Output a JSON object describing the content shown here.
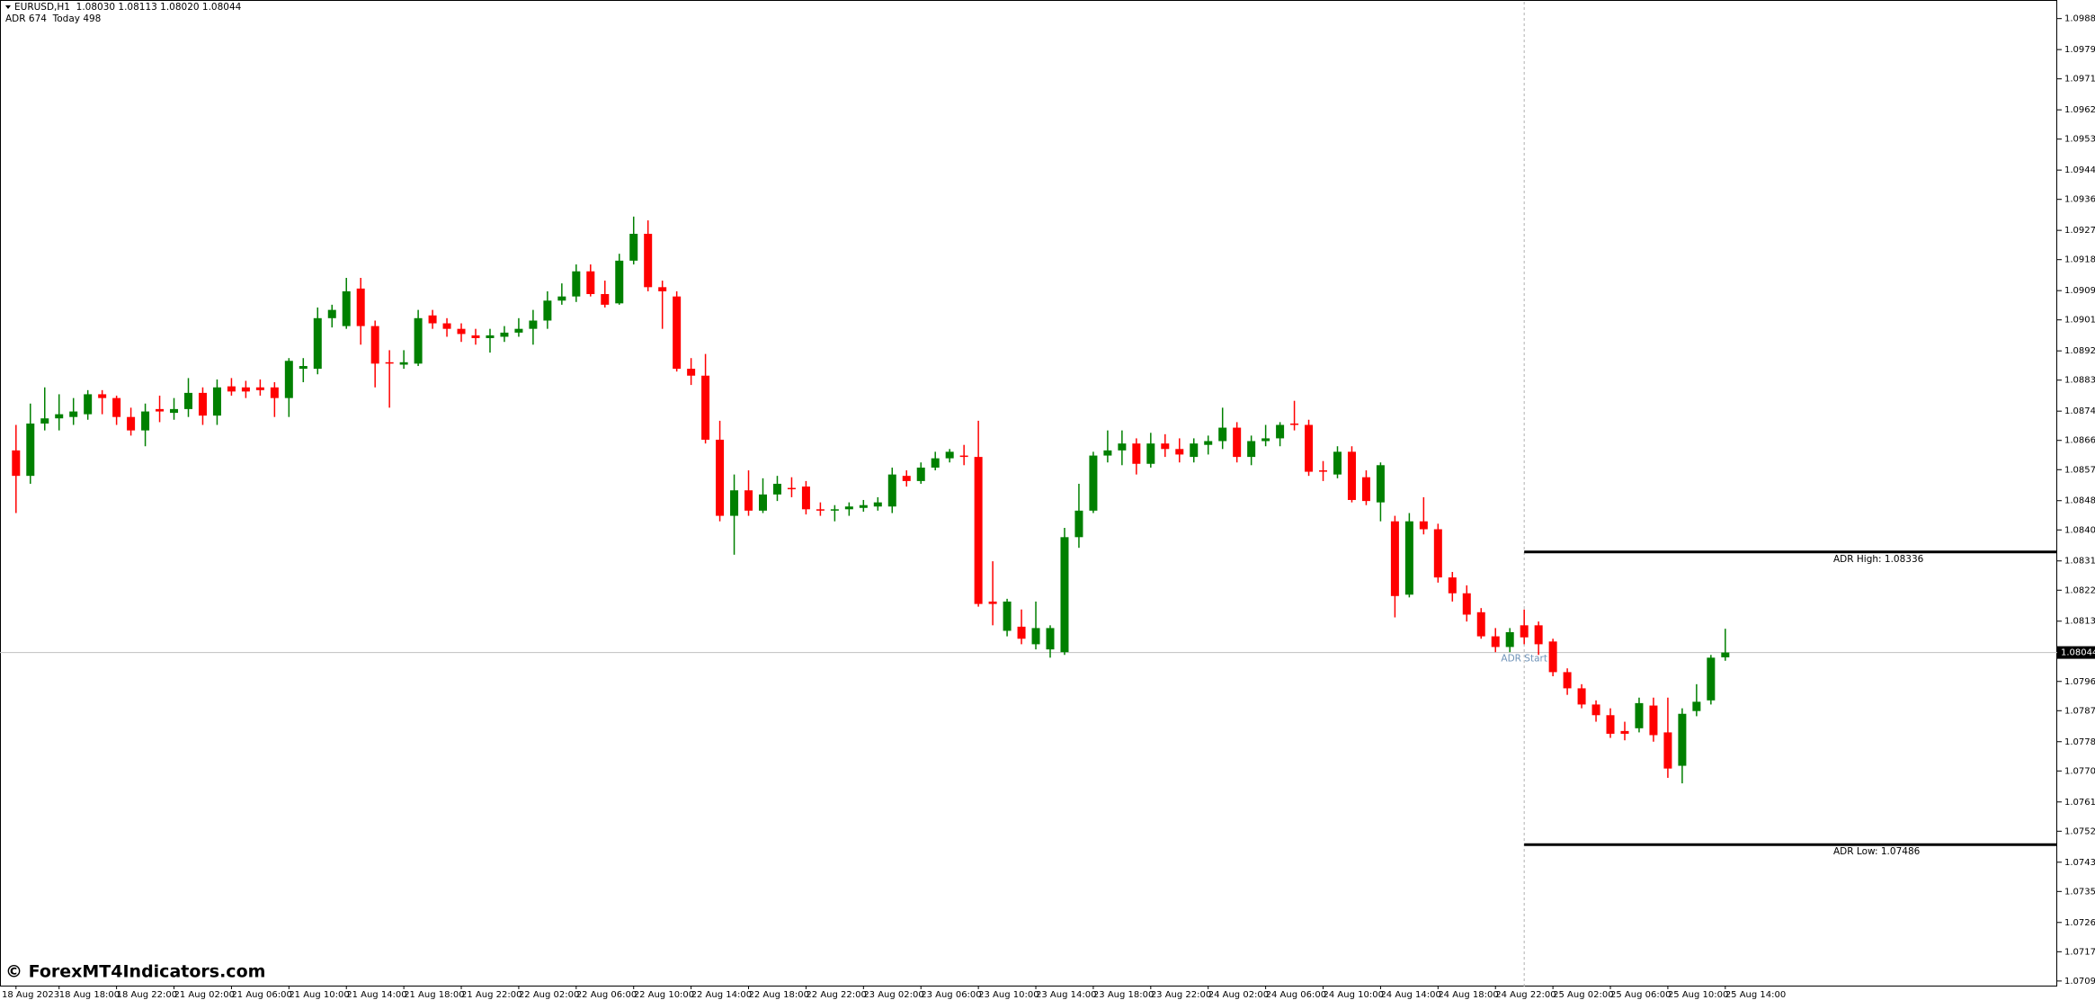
{
  "chart_data": {
    "type": "candlestick",
    "title": "EURUSD,H1  1.08030 1.08113 1.08020 1.08044",
    "subtitle": "ADR 674  Today 498",
    "watermark": "© ForexMT4Indicators.com",
    "up_color": "#008000",
    "down_color": "#ff0000",
    "grid": false,
    "ylim": [
      1.07074,
      1.09939
    ],
    "yticks": [
      1.09885,
      1.09795,
      {
        "value": 1.0971,
        "label": "1.09710"
      },
      {
        "value": 1.0962,
        "label": "1.09620"
      },
      1.09535,
      1.09445,
      {
        "value": 1.0936,
        "label": "1.09360"
      },
      {
        "value": 1.0927,
        "label": "1.09270"
      },
      1.09185,
      1.09095,
      {
        "value": 1.0901,
        "label": "1.09010"
      },
      {
        "value": 1.0892,
        "label": "1.08920"
      },
      1.08835,
      1.08745,
      {
        "value": 1.0866,
        "label": "1.08660"
      },
      1.08575,
      1.08485,
      {
        "value": 1.084,
        "label": "1.08400"
      },
      {
        "value": 1.0831,
        "label": "1.08310"
      },
      1.08225,
      1.08135,
      {
        "value": 1.0796,
        "label": "1.07960"
      },
      1.07875,
      1.07785,
      {
        "value": 1.077,
        "label": "1.07700"
      },
      {
        "value": 1.0761,
        "label": "1.07610"
      },
      1.07525,
      1.07435,
      {
        "value": 1.0735,
        "label": "1.07350"
      },
      {
        "value": 1.0726,
        "label": "1.07260"
      },
      1.07175,
      {
        "value": 1.0709,
        "label": "1.07090"
      }
    ],
    "categories": [
      "18 Aug 2023",
      null,
      null,
      "18 Aug 18:00",
      null,
      null,
      null,
      "18 Aug 22:00",
      null,
      null,
      null,
      "21 Aug 02:00",
      null,
      null,
      null,
      "21 Aug 06:00",
      null,
      null,
      null,
      "21 Aug 10:00",
      null,
      null,
      null,
      "21 Aug 14:00",
      null,
      null,
      null,
      "21 Aug 18:00",
      null,
      null,
      null,
      "21 Aug 22:00",
      null,
      null,
      null,
      "22 Aug 02:00",
      null,
      null,
      null,
      "22 Aug 06:00",
      null,
      null,
      null,
      "22 Aug 10:00",
      null,
      null,
      null,
      "22 Aug 14:00",
      null,
      null,
      null,
      "22 Aug 18:00",
      null,
      null,
      null,
      "22 Aug 22:00",
      null,
      null,
      null,
      "23 Aug 02:00",
      null,
      null,
      null,
      "23 Aug 06:00",
      null,
      null,
      null,
      "23 Aug 10:00",
      null,
      null,
      null,
      "23 Aug 14:00",
      null,
      null,
      null,
      "23 Aug 18:00",
      null,
      null,
      null,
      "23 Aug 22:00",
      null,
      null,
      null,
      "24 Aug 02:00",
      null,
      null,
      null,
      "24 Aug 06:00",
      null,
      null,
      null,
      "24 Aug 10:00",
      null,
      null,
      null,
      "24 Aug 14:00",
      null,
      null,
      null,
      "24 Aug 18:00",
      null,
      null,
      null,
      "24 Aug 22:00",
      null,
      null,
      null,
      "25 Aug 02:00",
      null,
      null,
      null,
      "25 Aug 06:00",
      null,
      null,
      null,
      "25 Aug 10:00",
      null,
      null,
      null,
      "25 Aug 14:00"
    ],
    "open": [
      1.08631,
      1.08557,
      1.08709,
      1.08724,
      1.08728,
      1.08736,
      1.08794,
      1.08783,
      1.08728,
      1.08689,
      1.08751,
      1.0874,
      1.08751,
      1.08798,
      1.08732,
      1.08817,
      1.08814,
      1.08814,
      1.08814,
      1.08783,
      1.08868,
      1.08868,
      1.09015,
      1.08992,
      1.09101,
      1.08992,
      1.08887,
      1.0888,
      1.08883,
      1.09023,
      1.09,
      1.08984,
      1.08965,
      1.08957,
      1.08961,
      1.08973,
      1.08984,
      1.09008,
      1.09066,
      1.09078,
      1.09151,
      1.09085,
      1.09058,
      1.09182,
      1.0926,
      1.09105,
      1.09078,
      1.08868,
      1.08848,
      1.08662,
      1.08441,
      1.08515,
      1.08456,
      1.08503,
      1.08522,
      1.08526,
      1.0846,
      1.08456,
      1.0846,
      1.08464,
      1.08468,
      1.08468,
      1.08557,
      1.08542,
      1.08581,
      1.08608,
      1.08616,
      1.08612,
      1.08192,
      1.08107,
      1.08119,
      1.08068,
      1.08053,
      1.08045,
      1.08379,
      1.08456,
      1.08616,
      1.08631,
      1.08651,
      1.08592,
      1.08651,
      1.08635,
      1.08612,
      1.08647,
      1.08658,
      1.08697,
      1.08612,
      1.08658,
      1.08666,
      1.08709,
      1.08705,
      1.08573,
      1.08561,
      1.08627,
      1.08553,
      1.0848,
      1.08425,
      1.08212,
      1.08425,
      1.08402,
      1.08262,
      1.08216,
      1.08161,
      1.08091,
      1.0806,
      1.08123,
      1.08123,
      1.08076,
      1.07987,
      1.0794,
      1.07893,
      1.07862,
      1.07816,
      1.07824,
      1.0789,
      1.07812,
      1.07715,
      1.07874,
      1.07905,
      1.0803
    ],
    "high": [
      1.08705,
      1.08767,
      1.08814,
      1.08794,
      1.08783,
      1.08806,
      1.08806,
      1.0879,
      1.08755,
      1.08767,
      1.0879,
      1.08783,
      1.08841,
      1.08814,
      1.08837,
      1.08841,
      1.08833,
      1.08837,
      1.08829,
      1.08899,
      1.08899,
      1.09046,
      1.09054,
      1.09132,
      1.09132,
      1.09008,
      1.08922,
      1.08922,
      1.09039,
      1.09039,
      1.09015,
      1.09,
      1.08984,
      1.08984,
      1.08992,
      1.09015,
      1.09039,
      1.09093,
      1.09116,
      1.09171,
      1.09171,
      1.09124,
      1.09202,
      1.0931,
      1.09299,
      1.09124,
      1.09093,
      1.08899,
      1.08911,
      1.08717,
      1.08561,
      1.08573,
      1.0855,
      1.08557,
      1.08553,
      1.08542,
      1.0848,
      1.08472,
      1.0848,
      1.08487,
      1.08495,
      1.08581,
      1.08573,
      1.08596,
      1.08627,
      1.08635,
      1.08647,
      1.08717,
      1.08309,
      1.082,
      1.08169,
      1.08192,
      1.08123,
      1.08406,
      1.08534,
      1.08627,
      1.08689,
      1.08689,
      1.08666,
      1.08682,
      1.08678,
      1.08666,
      1.08666,
      1.08674,
      1.08755,
      1.08713,
      1.08674,
      1.08705,
      1.08713,
      1.08775,
      1.0872,
      1.086,
      1.08643,
      1.08643,
      1.08573,
      1.08596,
      1.08441,
      1.08449,
      1.08495,
      1.08418,
      1.08278,
      1.08239,
      1.08173,
      1.08115,
      1.08115,
      1.08169,
      1.08134,
      1.08084,
      1.07998,
      1.07952,
      1.07905,
      1.07882,
      1.07843,
      1.07913,
      1.07913,
      1.07913,
      1.07882,
      1.07952,
      1.08037,
      1.08113
    ],
    "low": [
      1.08449,
      1.08534,
      1.08689,
      1.08689,
      1.08705,
      1.0872,
      1.08736,
      1.08705,
      1.08674,
      1.08643,
      1.08713,
      1.0872,
      1.08728,
      1.08705,
      1.08705,
      1.0879,
      1.08783,
      1.0879,
      1.08728,
      1.08728,
      1.08829,
      1.08852,
      1.08988,
      1.08984,
      1.08938,
      1.08814,
      1.08755,
      1.08868,
      1.08876,
      1.08984,
      1.08961,
      1.08946,
      1.08938,
      1.08915,
      1.08946,
      1.08961,
      1.08938,
      1.08984,
      1.09054,
      1.09062,
      1.09078,
      1.09046,
      1.09054,
      1.09171,
      1.09093,
      1.08984,
      1.0886,
      1.08821,
      1.08651,
      1.08425,
      1.08328,
      1.08441,
      1.08449,
      1.08484,
      1.08495,
      1.08445,
      1.08441,
      1.08425,
      1.08441,
      1.08453,
      1.08456,
      1.08449,
      1.08526,
      1.08534,
      1.08573,
      1.08596,
      1.08588,
      1.08177,
      1.08123,
      1.08091,
      1.08068,
      1.08053,
      1.08029,
      1.08037,
      1.08348,
      1.08449,
      1.08596,
      1.08588,
      1.08561,
      1.08581,
      1.08612,
      1.08596,
      1.08596,
      1.08619,
      1.08635,
      1.08596,
      1.08588,
      1.08643,
      1.08643,
      1.08689,
      1.08557,
      1.08542,
      1.0855,
      1.0848,
      1.08472,
      1.08425,
      1.08146,
      1.08204,
      1.08387,
      1.08247,
      1.08192,
      1.08134,
      1.08084,
      1.08045,
      1.08045,
      1.08068,
      1.08037,
      1.07975,
      1.07921,
      1.07882,
      1.07843,
      1.07796,
      1.07789,
      1.07812,
      1.07785,
      1.0768,
      1.07664,
      1.07859,
      1.07893,
      1.0802
    ],
    "close": [
      1.08557,
      1.08709,
      1.08724,
      1.08736,
      1.08744,
      1.08794,
      1.08783,
      1.08728,
      1.08689,
      1.08744,
      1.08744,
      1.08751,
      1.08798,
      1.08732,
      1.08814,
      1.08802,
      1.08802,
      1.08806,
      1.08783,
      1.08891,
      1.08876,
      1.09015,
      1.09039,
      1.09093,
      1.08992,
      1.08883,
      1.08883,
      1.08887,
      1.09015,
      1.09,
      1.08984,
      1.08969,
      1.08957,
      1.08965,
      1.08973,
      1.08984,
      1.09008,
      1.09066,
      1.09078,
      1.09151,
      1.09085,
      1.09054,
      1.09182,
      1.0926,
      1.09105,
      1.09093,
      1.08868,
      1.08848,
      1.08662,
      1.08441,
      1.08515,
      1.08456,
      1.08503,
      1.08534,
      1.08519,
      1.0846,
      1.08456,
      1.0846,
      1.08468,
      1.08472,
      1.0848,
      1.08561,
      1.08542,
      1.08581,
      1.08608,
      1.08627,
      1.08612,
      1.08185,
      1.08185,
      1.08192,
      1.08084,
      1.08115,
      1.08115,
      1.08379,
      1.08456,
      1.08616,
      1.08631,
      1.08651,
      1.08592,
      1.08651,
      1.08635,
      1.08619,
      1.08651,
      1.08658,
      1.08697,
      1.08612,
      1.08658,
      1.08666,
      1.08705,
      1.08705,
      1.08569,
      1.08569,
      1.08627,
      1.08487,
      1.08484,
      1.08588,
      1.08208,
      1.08425,
      1.08402,
      1.08262,
      1.08216,
      1.08154,
      1.08091,
      1.0806,
      1.08103,
      1.08088,
      1.08068,
      1.07987,
      1.0794,
      1.07893,
      1.07862,
      1.07808,
      1.07808,
      1.07897,
      1.07804,
      1.07707,
      1.07866,
      1.07901,
      1.08029,
      1.08044
    ],
    "levels": [
      {
        "label": "ADR High: 1.08336",
        "value": 1.08336
      },
      {
        "label": "ADR Low: 1.07486",
        "value": 1.07486
      }
    ],
    "start_label": "ADR Start"
  }
}
